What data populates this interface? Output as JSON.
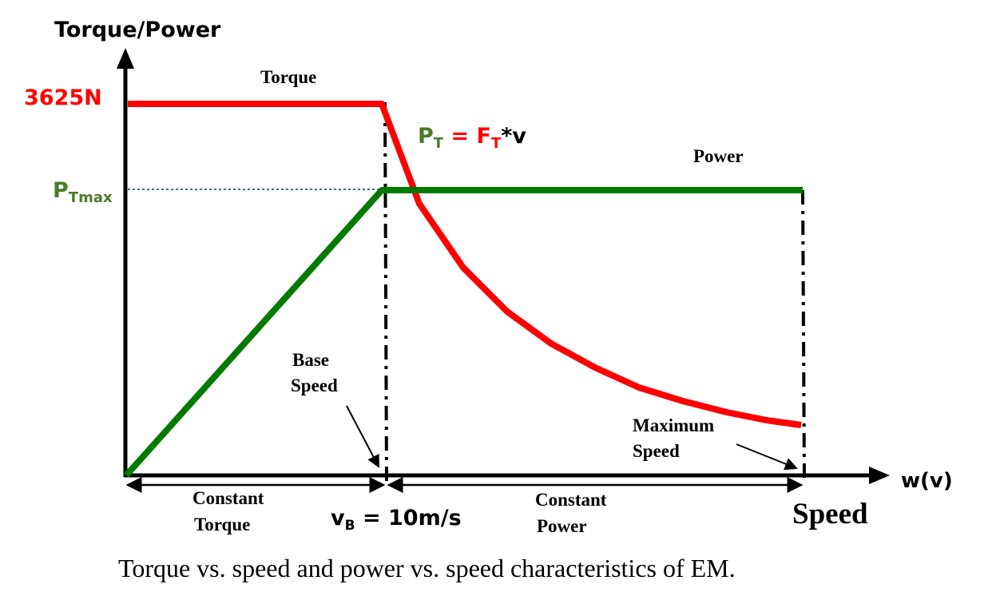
{
  "labels": {
    "y_axis_title": "Torque/Power",
    "x_axis_title": "w(v)",
    "torque_value": "3625N",
    "p_tmax_main": "P",
    "p_tmax_sub": "Tmax",
    "torque_curve": "Torque",
    "power_curve": "Power",
    "formula_p": "P",
    "formula_p_sub": "T",
    "formula_eq": " = ",
    "formula_f": "F",
    "formula_f_sub": "T",
    "formula_tail": "*v",
    "base_speed_line1": "Base",
    "base_speed_line2": "Speed",
    "max_speed_line1": "Maximum",
    "max_speed_line2": "Speed",
    "constant_torque_line1": "Constant",
    "constant_torque_line2": "Torque",
    "constant_power_line1": "Constant",
    "constant_power_line2": "Power",
    "vb_main": "v",
    "vb_sub": "B",
    "vb_value": " = 10m/s",
    "speed_label": "Speed",
    "caption": "Torque vs. speed and power vs. speed characteristics of EM."
  },
  "colors": {
    "torque": "#ff0000",
    "power": "#007a00",
    "green_text": "#4a7b2a",
    "axis": "#000000",
    "dotted": "#4a6b8a"
  }
}
